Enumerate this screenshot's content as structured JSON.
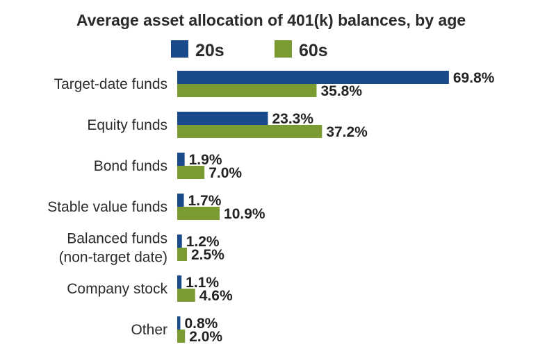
{
  "chart_data": {
    "type": "bar",
    "orientation": "horizontal",
    "title": "Average asset allocation of 401(k) balances, by age",
    "legend_position": "top",
    "grid": false,
    "xlim": [
      0,
      70
    ],
    "categories": [
      [
        "Target-date funds"
      ],
      [
        "Equity funds"
      ],
      [
        "Bond funds"
      ],
      [
        "Stable value funds"
      ],
      [
        "Balanced funds",
        "(non-target date)"
      ],
      [
        "Company stock"
      ],
      [
        "Other"
      ]
    ],
    "series": [
      {
        "name": "20s",
        "color": "#1b4a8c",
        "values": [
          69.8,
          23.3,
          1.9,
          1.7,
          1.2,
          1.1,
          0.8
        ],
        "labels": [
          "69.8%",
          "23.3%",
          "1.9%",
          "1.7%",
          "1.2%",
          "1.1%",
          "0.8%"
        ]
      },
      {
        "name": "60s",
        "color": "#7a9a32",
        "values": [
          35.8,
          37.2,
          7.0,
          10.9,
          2.5,
          4.6,
          2.0
        ],
        "labels": [
          "35.8%",
          "37.2%",
          "7.0%",
          "10.9%",
          "2.5%",
          "4.6%",
          "2.0%"
        ]
      }
    ]
  }
}
